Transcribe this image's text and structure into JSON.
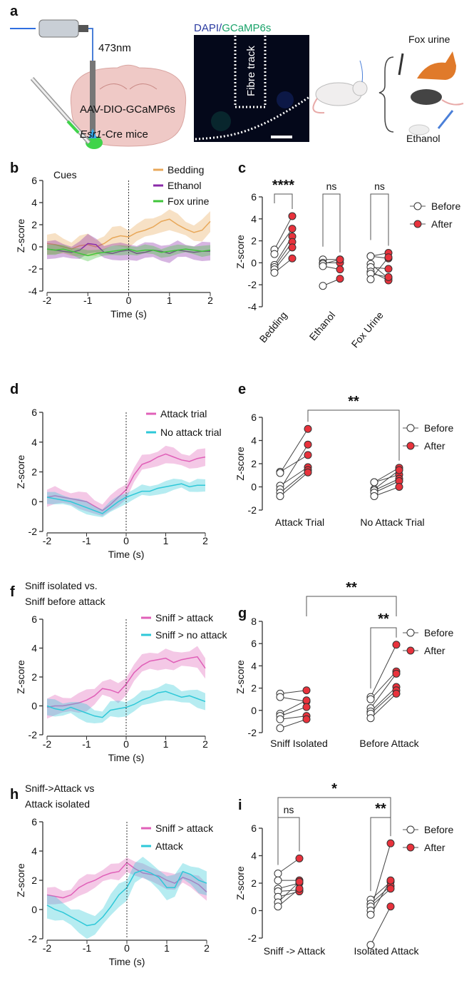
{
  "panel_a": {
    "label": "a",
    "wavelength": "473nm",
    "virus": "AAV-DIO-GCaMP6s",
    "mouse_line_italic": "Esr1",
    "mouse_line_rest": "-Cre mice",
    "stain_dapi": "DAPI",
    "stain_sep": "/",
    "stain_gcamp": "GCaMP6s",
    "fibre": "Fibre track",
    "cue_fox": "Fox urine",
    "cue_ethanol": "Ethanol",
    "colors": {
      "dapi": "#2a3aa0",
      "gcamp": "#1aa36a",
      "brain": "#efc9c6",
      "laser": "#2f6fe0"
    }
  },
  "chart_data": [
    {
      "id": "b",
      "label": "b",
      "type": "line",
      "title": "Cues",
      "xlabel": "Time (s)",
      "ylabel": "Z-score",
      "xlim": [
        -2,
        2
      ],
      "ylim": [
        -4,
        6
      ],
      "xticks": [
        "-2",
        "-1",
        "0",
        "1",
        "2"
      ],
      "yticks": [
        "6",
        "4",
        "2",
        "0",
        "-2",
        "-4"
      ],
      "x": [
        -2,
        -1.8,
        -1.6,
        -1.4,
        -1.2,
        -1,
        -0.8,
        -0.6,
        -0.4,
        -0.2,
        0,
        0.2,
        0.4,
        0.6,
        0.8,
        1,
        1.2,
        1.4,
        1.6,
        1.8,
        2
      ],
      "series": [
        {
          "name": "Bedding",
          "color": "#e8a85a",
          "sem": 0.8,
          "values": [
            0.3,
            0.2,
            0.0,
            -0.2,
            0.1,
            0.2,
            0.0,
            0.3,
            0.8,
            1.0,
            0.9,
            1.3,
            1.5,
            1.8,
            2.3,
            2.5,
            2.0,
            1.6,
            1.3,
            1.5,
            2.3
          ]
        },
        {
          "name": "Ethanol",
          "color": "#8a2aa8",
          "sem": 0.7,
          "values": [
            -0.2,
            -0.3,
            -0.4,
            -0.5,
            -0.3,
            0.3,
            0.2,
            -0.5,
            -0.6,
            -0.4,
            -0.3,
            -0.6,
            -0.5,
            -0.3,
            -0.4,
            -0.6,
            -0.3,
            -0.4,
            -0.5,
            -0.4,
            -0.4
          ]
        },
        {
          "name": "Fox urine",
          "color": "#3fc43a",
          "sem": 0.4,
          "values": [
            -0.2,
            -0.3,
            -0.2,
            -0.4,
            -0.6,
            -0.8,
            -0.6,
            -0.5,
            -0.4,
            -0.3,
            -0.2,
            -0.4,
            -0.3,
            -0.3,
            -0.5,
            -0.4,
            -0.3,
            -0.2,
            -0.3,
            -0.4,
            -0.3
          ]
        }
      ]
    },
    {
      "id": "c",
      "label": "c",
      "type": "scatter",
      "ylabel": "Z-score",
      "ylim": [
        -4,
        6
      ],
      "yticks": [
        "6",
        "4",
        "2",
        "0",
        "-2",
        "-4"
      ],
      "legend": [
        "Before",
        "After"
      ],
      "groups": [
        {
          "name": "Bedding",
          "sig": "****",
          "before": [
            1.2,
            0.8,
            -0.2,
            -0.4,
            -0.6,
            -0.9
          ],
          "after": [
            4.25,
            3.1,
            2.4,
            1.9,
            1.4,
            0.4
          ]
        },
        {
          "name": "Ethanol",
          "sig": "ns",
          "before": [
            0.3,
            0.0,
            -0.1,
            -0.3,
            -2.1
          ],
          "after": [
            0.3,
            0.0,
            0.3,
            -0.6,
            -1.45
          ]
        },
        {
          "name": "Fox Urine",
          "sig": "ns",
          "before": [
            0.6,
            0.6,
            -0.1,
            -0.4,
            -0.8,
            -1.0,
            -1.5
          ],
          "after": [
            0.9,
            0.4,
            -1.4,
            -0.55,
            -1.6,
            -1.3,
            0.5
          ]
        }
      ]
    },
    {
      "id": "d",
      "label": "d",
      "type": "line",
      "xlabel": "Time (s)",
      "ylabel": "Z-score",
      "xlim": [
        -2,
        2
      ],
      "ylim": [
        -2,
        6
      ],
      "xticks": [
        "-2",
        "-1",
        "0",
        "1",
        "2"
      ],
      "yticks": [
        "6",
        "4",
        "2",
        "0",
        "-2"
      ],
      "x": [
        -2,
        -1.8,
        -1.6,
        -1.4,
        -1.2,
        -1,
        -0.8,
        -0.6,
        -0.4,
        -0.2,
        0,
        0.2,
        0.4,
        0.6,
        0.8,
        1,
        1.2,
        1.4,
        1.6,
        1.8,
        2
      ],
      "series": [
        {
          "name": "Attack trial",
          "color": "#e060b8",
          "sem": 0.5,
          "values": [
            0.3,
            0.4,
            0.3,
            0.2,
            0.1,
            0.0,
            -0.3,
            -0.6,
            -0.2,
            0.3,
            0.8,
            1.8,
            2.5,
            2.7,
            3.0,
            3.2,
            3.0,
            2.8,
            2.7,
            2.9,
            3.0
          ]
        },
        {
          "name": "No attack trial",
          "color": "#2ec8d8",
          "sem": 0.35,
          "values": [
            0.3,
            0.2,
            0.1,
            0.0,
            -0.2,
            -0.4,
            -0.6,
            -0.8,
            -0.4,
            0.0,
            0.3,
            0.5,
            0.7,
            0.7,
            0.9,
            1.0,
            1.1,
            1.2,
            1.0,
            1.1,
            1.1
          ]
        }
      ]
    },
    {
      "id": "e",
      "label": "e",
      "type": "scatter",
      "ylabel": "Z-score",
      "ylim": [
        -2,
        6
      ],
      "yticks": [
        "6",
        "4",
        "2",
        "0",
        "-2"
      ],
      "legend": [
        "Before",
        "After"
      ],
      "brackets": [
        {
          "sig": "**",
          "from": 0,
          "to": 1
        }
      ],
      "groups": [
        {
          "name": "Attack Trial",
          "before": [
            1.3,
            1.2,
            0.1,
            -0.2,
            -0.5,
            -0.8
          ],
          "after": [
            2.75,
            5.0,
            1.7,
            3.65,
            1.45,
            1.25
          ]
        },
        {
          "name": "No Attack Trial",
          "before": [
            0.4,
            0.4,
            -0.2,
            -0.3,
            -0.5,
            -0.8
          ],
          "after": [
            1.05,
            1.65,
            1.45,
            0.7,
            0.5,
            0.0
          ]
        }
      ]
    },
    {
      "id": "f",
      "label": "f",
      "type": "line",
      "title_lines": [
        "Sniff isolated vs.",
        "Sniff before attack"
      ],
      "xlabel": "Time (s)",
      "ylabel": "Z-score",
      "xlim": [
        -2,
        2
      ],
      "ylim": [
        -2,
        6
      ],
      "xticks": [
        "-2",
        "-1",
        "0",
        "1",
        "2"
      ],
      "yticks": [
        "6",
        "4",
        "2",
        "0",
        "-2"
      ],
      "x": [
        -2,
        -1.8,
        -1.6,
        -1.4,
        -1.2,
        -1,
        -0.8,
        -0.6,
        -0.4,
        -0.2,
        0,
        0.2,
        0.4,
        0.6,
        0.8,
        1,
        1.2,
        1.4,
        1.6,
        1.8,
        2
      ],
      "series": [
        {
          "name": "Sniff > attack",
          "color": "#e060b8",
          "sem": 0.6,
          "values": [
            -0.1,
            0.0,
            0.0,
            0.1,
            0.2,
            0.4,
            0.7,
            1.2,
            1.1,
            0.9,
            1.5,
            2.3,
            2.8,
            3.1,
            3.2,
            3.3,
            3.0,
            3.2,
            3.3,
            3.4,
            2.6
          ]
        },
        {
          "name": "Sniff > no attack",
          "color": "#2ec8d8",
          "sem": 0.5,
          "values": [
            0.0,
            -0.2,
            -0.3,
            -0.1,
            -0.3,
            -0.5,
            -0.7,
            -0.8,
            -0.3,
            -0.2,
            -0.1,
            0.1,
            0.4,
            0.6,
            0.9,
            1.0,
            0.8,
            0.6,
            0.7,
            0.5,
            0.3
          ]
        }
      ]
    },
    {
      "id": "g",
      "label": "g",
      "type": "scatter",
      "ylabel": "Z-score",
      "ylim": [
        -2,
        8
      ],
      "yticks": [
        "8",
        "6",
        "4",
        "2",
        "0",
        "-2"
      ],
      "legend": [
        "Before",
        "After"
      ],
      "brackets": [
        {
          "sig": "**",
          "from": 0,
          "to": 1
        },
        {
          "sig": "**",
          "group": 1
        }
      ],
      "groups": [
        {
          "name": "Sniff Isolated",
          "before": [
            1.5,
            1.2,
            -0.3,
            -0.5,
            -0.8,
            -1.6
          ],
          "after": [
            1.8,
            0.8,
            0.9,
            0.3,
            -0.5,
            -0.8
          ]
        },
        {
          "name": "Before Attack",
          "before": [
            1.2,
            1.0,
            0.2,
            -0.1,
            -0.3,
            -0.7
          ],
          "after": [
            5.9,
            3.5,
            3.3,
            2.1,
            1.8,
            1.5
          ]
        }
      ]
    },
    {
      "id": "h",
      "label": "h",
      "type": "line",
      "title_lines": [
        "Sniff->Attack vs",
        "Attack isolated"
      ],
      "xlabel": "Time (s)",
      "ylabel": "Z-score",
      "xlim": [
        -2,
        2
      ],
      "ylim": [
        -2,
        6
      ],
      "xticks": [
        "-2",
        "-1",
        "0",
        "1",
        "2"
      ],
      "yticks": [
        "6",
        "4",
        "2",
        "0",
        "-2"
      ],
      "x": [
        -2,
        -1.8,
        -1.6,
        -1.4,
        -1.2,
        -1,
        -0.8,
        -0.6,
        -0.4,
        -0.2,
        0,
        0.2,
        0.4,
        0.6,
        0.8,
        1,
        1.2,
        1.4,
        1.6,
        1.8,
        2
      ],
      "series": [
        {
          "name": "Sniff > attack",
          "color": "#e060b8",
          "sem": 0.5,
          "values": [
            1.0,
            0.9,
            0.8,
            1.0,
            1.5,
            1.8,
            2.0,
            2.3,
            2.5,
            2.6,
            3.2,
            2.8,
            2.5,
            2.4,
            2.3,
            2.0,
            1.8,
            2.2,
            2.0,
            1.7,
            1.2
          ]
        },
        {
          "name": "Attack",
          "color": "#2ec8d8",
          "sem": 0.7,
          "values": [
            0.3,
            0.0,
            -0.2,
            -0.5,
            -0.8,
            -1.1,
            -1.0,
            -0.5,
            0.2,
            1.0,
            1.5,
            2.5,
            2.7,
            2.5,
            2.2,
            1.5,
            1.5,
            2.6,
            2.4,
            2.0,
            1.8
          ]
        }
      ]
    },
    {
      "id": "i",
      "label": "i",
      "type": "scatter",
      "ylabel": "Z-score",
      "ylim": [
        -2,
        6
      ],
      "yticks": [
        "6",
        "4",
        "2",
        "0",
        "-2"
      ],
      "legend": [
        "Before",
        "After"
      ],
      "brackets": [
        {
          "sig": "*",
          "from": 0,
          "to": 1
        },
        {
          "sig": "ns",
          "group": 0
        },
        {
          "sig": "**",
          "group": 1
        }
      ],
      "groups": [
        {
          "name": "Sniff -> Attack",
          "before": [
            2.7,
            2.2,
            1.6,
            1.4,
            1.0,
            0.6,
            0.3
          ],
          "after": [
            3.8,
            2.2,
            2.0,
            1.5,
            1.4,
            2.1,
            1.6
          ]
        },
        {
          "name": "Isolated Attack",
          "before": [
            0.8,
            0.5,
            0.3,
            0.0,
            -0.3,
            -2.5
          ],
          "after": [
            2.1,
            1.8,
            1.6,
            4.9,
            2.2,
            0.3
          ]
        }
      ]
    }
  ]
}
